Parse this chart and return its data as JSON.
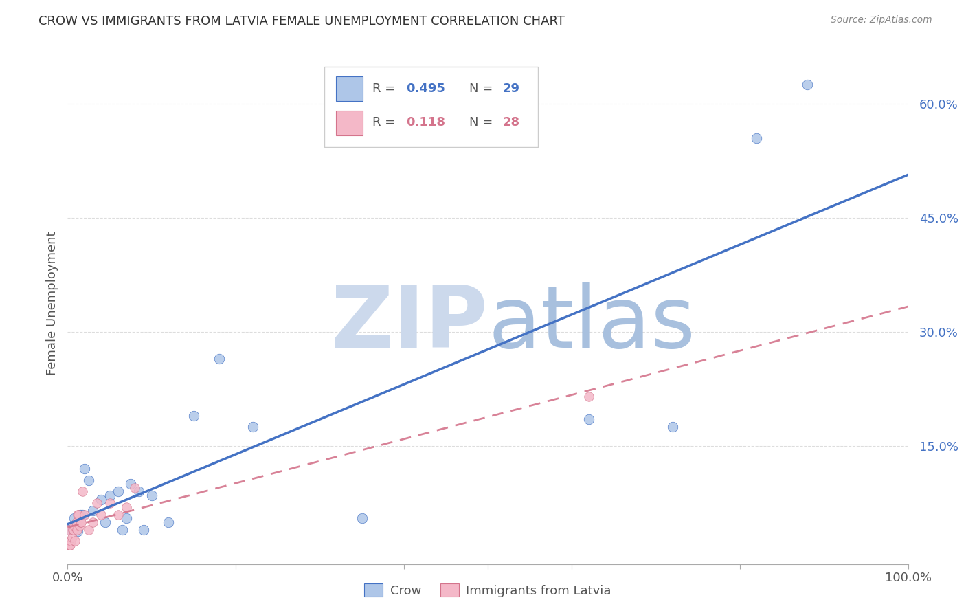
{
  "title": "CROW VS IMMIGRANTS FROM LATVIA FEMALE UNEMPLOYMENT CORRELATION CHART",
  "source": "Source: ZipAtlas.com",
  "ylabel": "Female Unemployment",
  "xlim": [
    0,
    1.0
  ],
  "ylim": [
    -0.005,
    0.68
  ],
  "crow_R": 0.495,
  "crow_N": 29,
  "latvia_R": 0.118,
  "latvia_N": 28,
  "crow_color": "#aec6e8",
  "crow_line_color": "#4472c4",
  "latvia_color": "#f4b8c8",
  "latvia_line_color": "#d4748c",
  "crow_x": [
    0.002,
    0.006,
    0.008,
    0.01,
    0.012,
    0.015,
    0.018,
    0.02,
    0.025,
    0.03,
    0.04,
    0.045,
    0.05,
    0.06,
    0.065,
    0.07,
    0.075,
    0.085,
    0.09,
    0.1,
    0.12,
    0.15,
    0.18,
    0.22,
    0.35,
    0.62,
    0.72,
    0.82,
    0.88
  ],
  "crow_y": [
    0.04,
    0.04,
    0.055,
    0.045,
    0.038,
    0.06,
    0.06,
    0.12,
    0.105,
    0.065,
    0.08,
    0.05,
    0.085,
    0.09,
    0.04,
    0.055,
    0.1,
    0.09,
    0.04,
    0.085,
    0.05,
    0.19,
    0.265,
    0.175,
    0.055,
    0.185,
    0.175,
    0.555,
    0.625
  ],
  "latvia_x": [
    0.0,
    0.001,
    0.002,
    0.003,
    0.004,
    0.005,
    0.006,
    0.007,
    0.008,
    0.009,
    0.01,
    0.011,
    0.012,
    0.013,
    0.014,
    0.015,
    0.016,
    0.018,
    0.02,
    0.025,
    0.03,
    0.035,
    0.04,
    0.05,
    0.06,
    0.07,
    0.08,
    0.62
  ],
  "latvia_y": [
    0.04,
    0.02,
    0.02,
    0.02,
    0.025,
    0.03,
    0.04,
    0.04,
    0.045,
    0.025,
    0.05,
    0.04,
    0.06,
    0.06,
    0.045,
    0.05,
    0.05,
    0.09,
    0.06,
    0.04,
    0.05,
    0.075,
    0.06,
    0.075,
    0.06,
    0.07,
    0.095,
    0.215
  ],
  "background_color": "#ffffff",
  "grid_color": "#dddddd",
  "ytick_positions": [
    0.15,
    0.3,
    0.45,
    0.6
  ],
  "ytick_labels": [
    "15.0%",
    "30.0%",
    "45.0%",
    "60.0%"
  ],
  "xtick_positions": [
    0.0,
    0.2,
    0.4,
    0.5,
    0.6,
    0.8,
    1.0
  ],
  "xtick_labels": [
    "0.0%",
    "",
    "",
    "",
    "",
    "",
    "100.0%"
  ]
}
